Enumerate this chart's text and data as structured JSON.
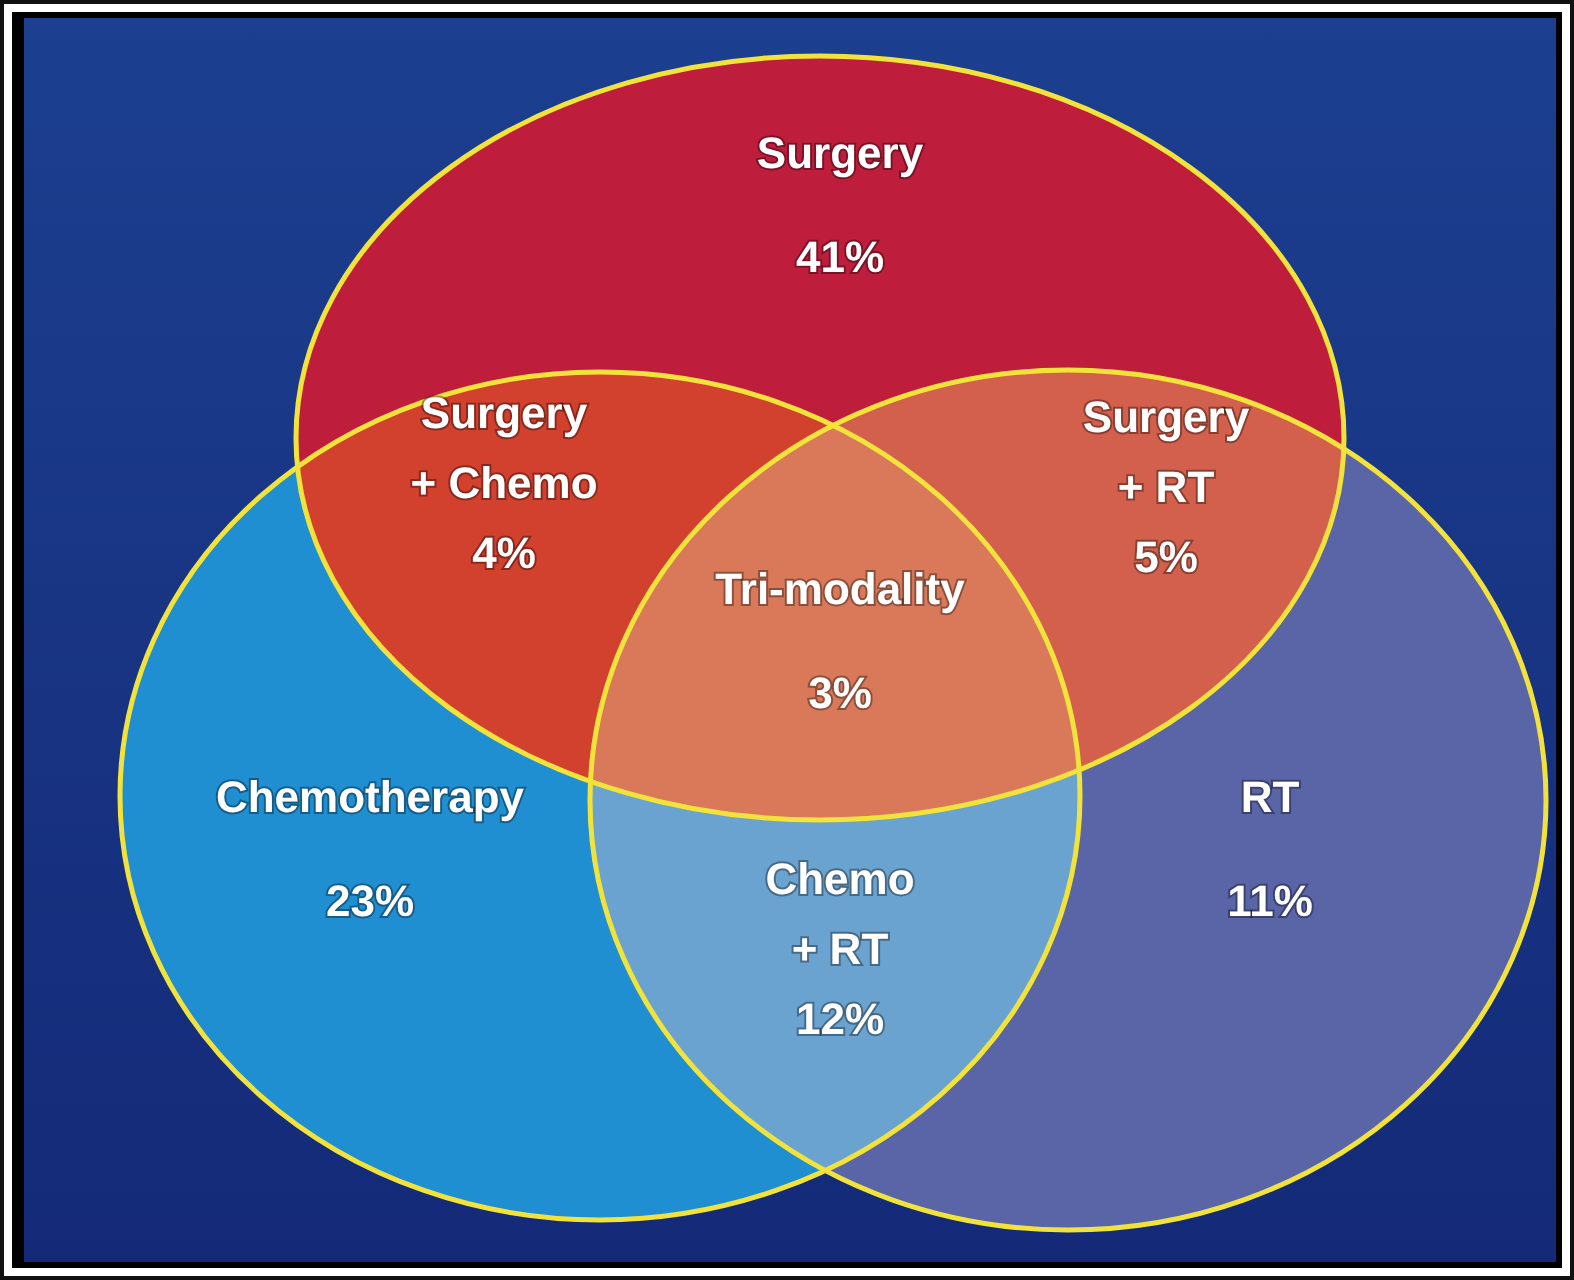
{
  "chart_data": {
    "type": "other",
    "categories": [
      "Surgery",
      "Chemotherapy",
      "RT",
      "Surgery + Chemo",
      "Surgery + RT",
      "Chemo + RT",
      "Tri-modality"
    ],
    "values": [
      41,
      23,
      11,
      4,
      5,
      12,
      3
    ],
    "value_labels": [
      "41%",
      "23%",
      "11%",
      "4%",
      "5%",
      "12%",
      "3%"
    ],
    "colors": [
      "#be1e3c",
      "#1f8fd2",
      "#5a65a8",
      "#d2402e",
      "#d2604c",
      "#6aa3cf",
      "#d9795a"
    ]
  }
}
